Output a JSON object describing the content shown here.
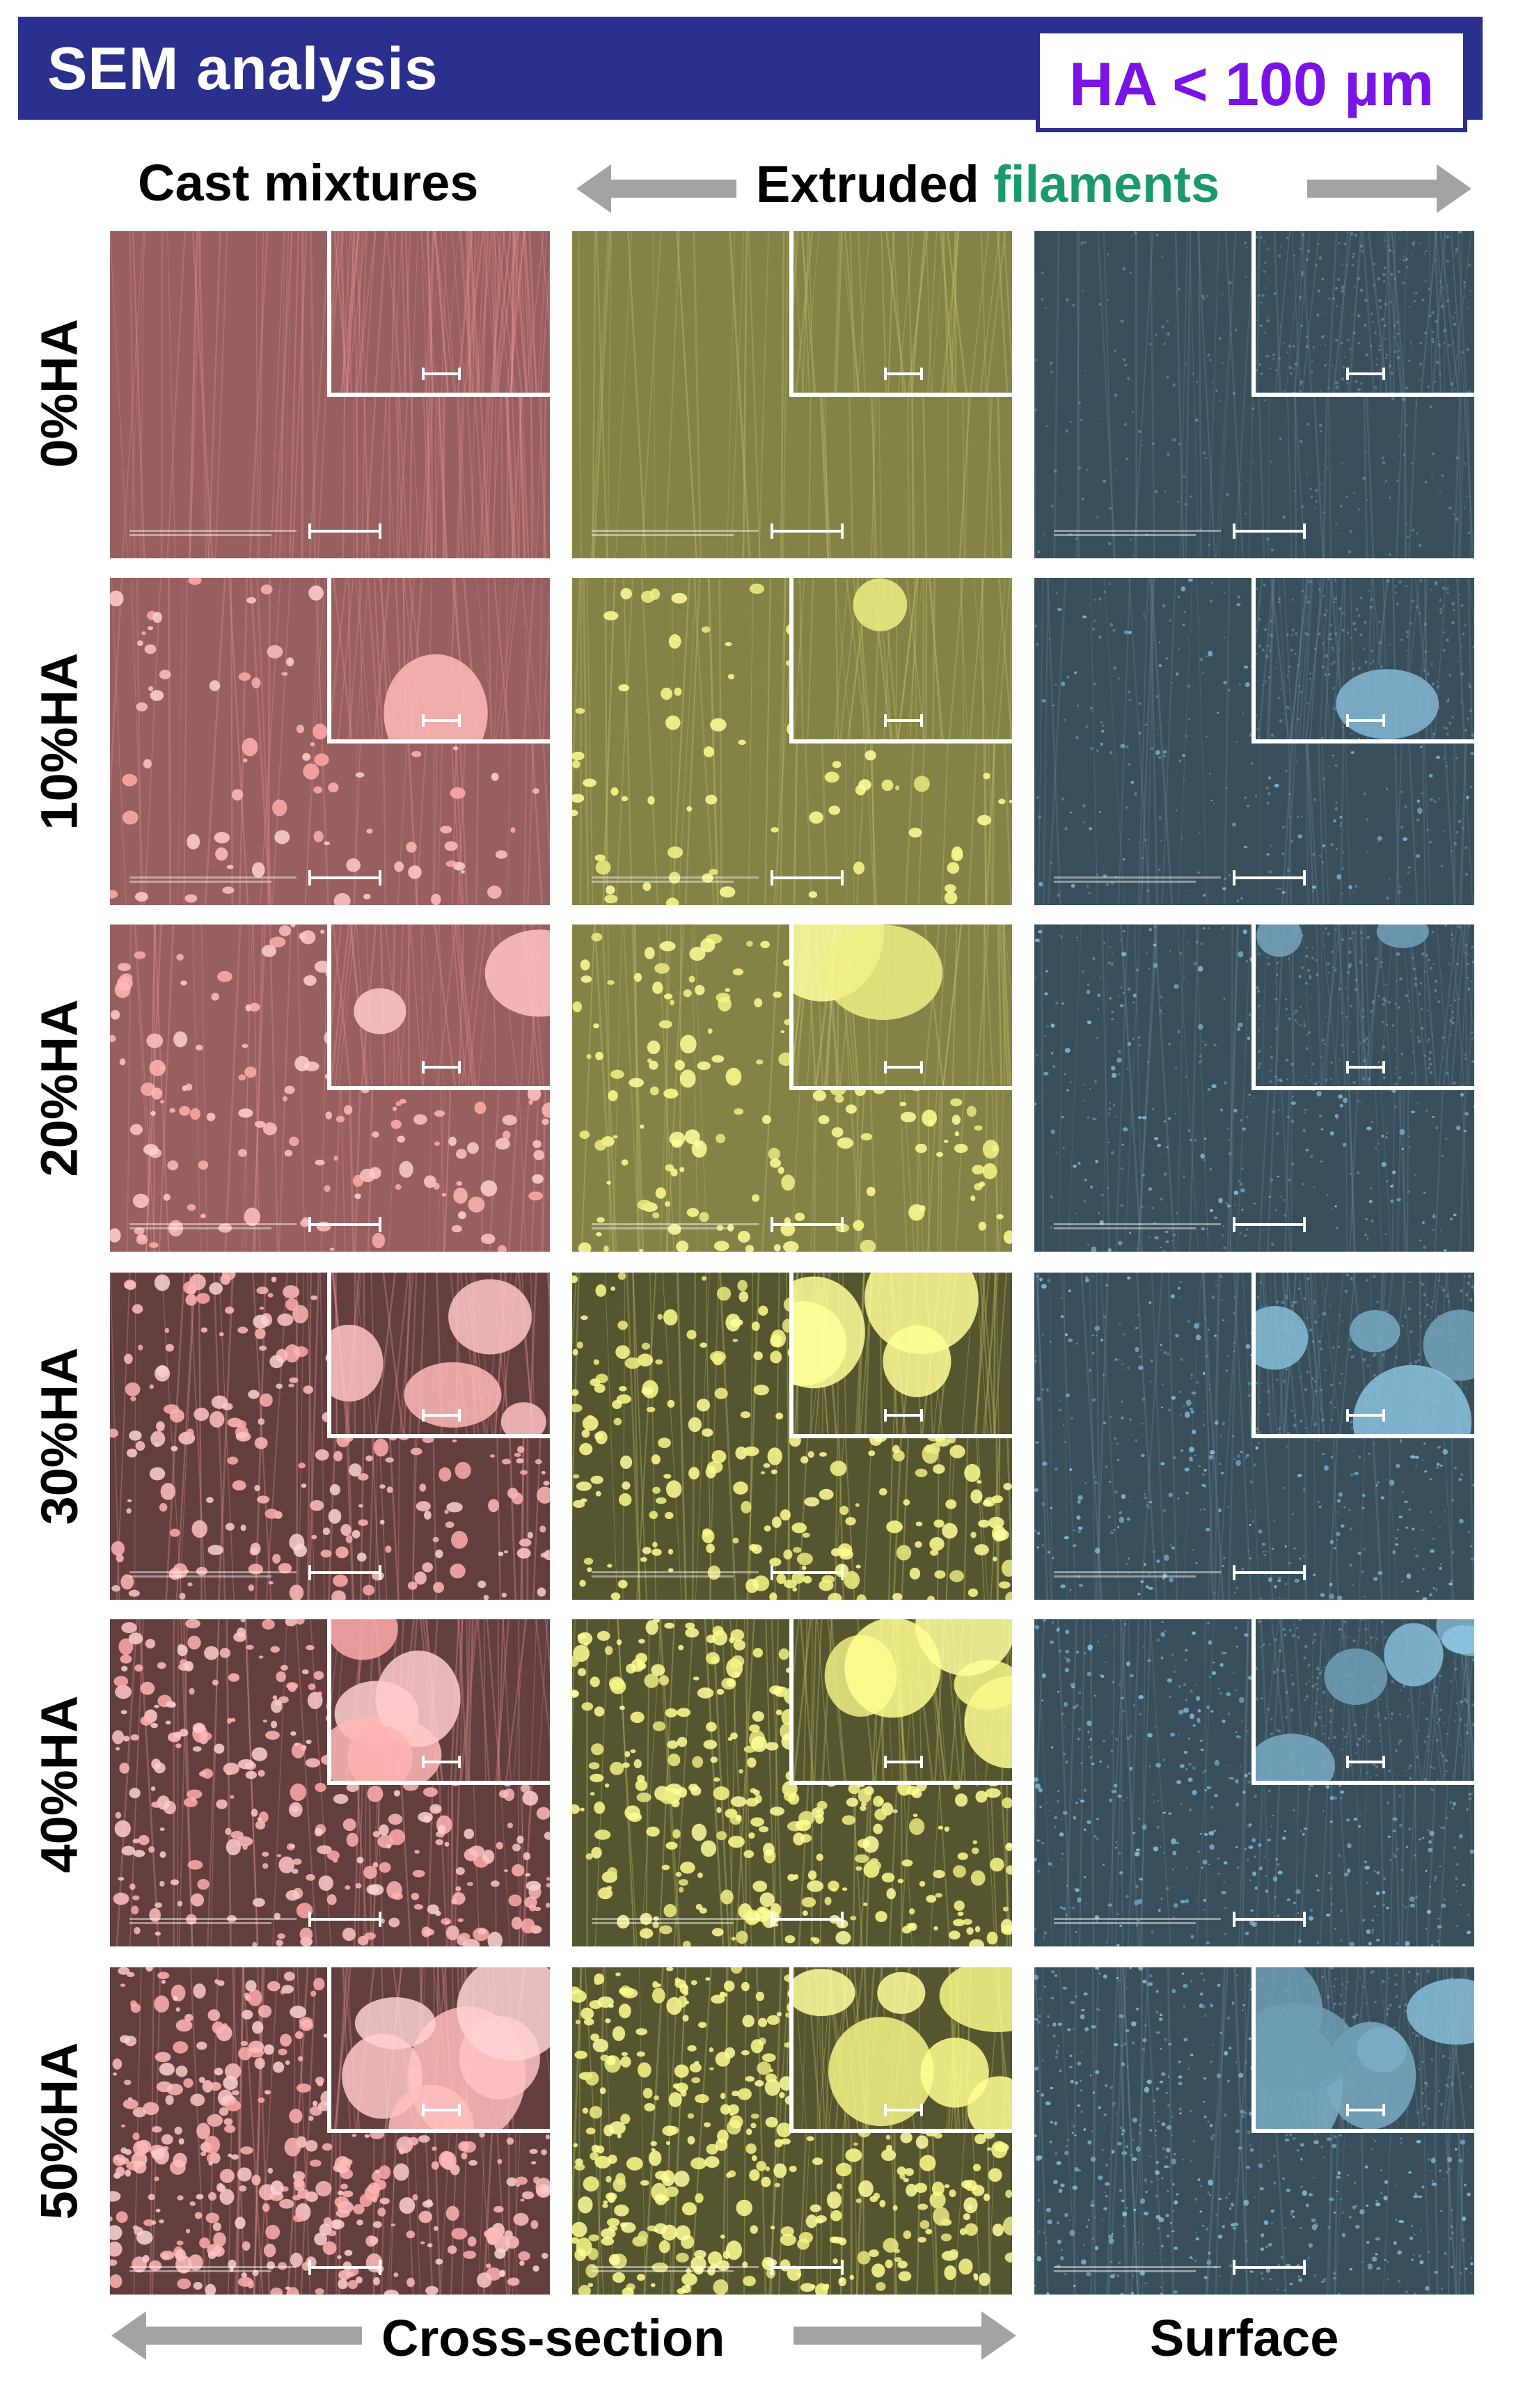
{
  "title": "SEM analysis",
  "ha_label": "HA < 100 µm",
  "colors": {
    "title_bg": "#2b2f8e",
    "ha_text": "#7a14e6",
    "filaments_text": "#1a9a6c",
    "arrow": "#a3a3a3",
    "cast": "#b27070",
    "extruded": "#9a9a55",
    "surface": "#4a6878"
  },
  "headers": {
    "cast": "Cast mixtures",
    "extruded_word": "Extruded",
    "filaments_word": "filaments",
    "cross_section": "Cross-section",
    "surface": "Surface"
  },
  "rows": [
    {
      "label": "0%HA",
      "particle_density": 0
    },
    {
      "label": "10%HA",
      "particle_density": 0.1
    },
    {
      "label": "20%HA",
      "particle_density": 0.2
    },
    {
      "label": "30%HA",
      "particle_density": 0.3
    },
    {
      "label": "40%HA",
      "particle_density": 0.4
    },
    {
      "label": "50%HA",
      "particle_density": 0.5
    }
  ],
  "columns": [
    {
      "key": "cast",
      "image": "sem-micrograph-cast"
    },
    {
      "key": "extruded",
      "image": "sem-micrograph-extruded"
    },
    {
      "key": "surface",
      "image": "sem-micrograph-surface"
    }
  ]
}
